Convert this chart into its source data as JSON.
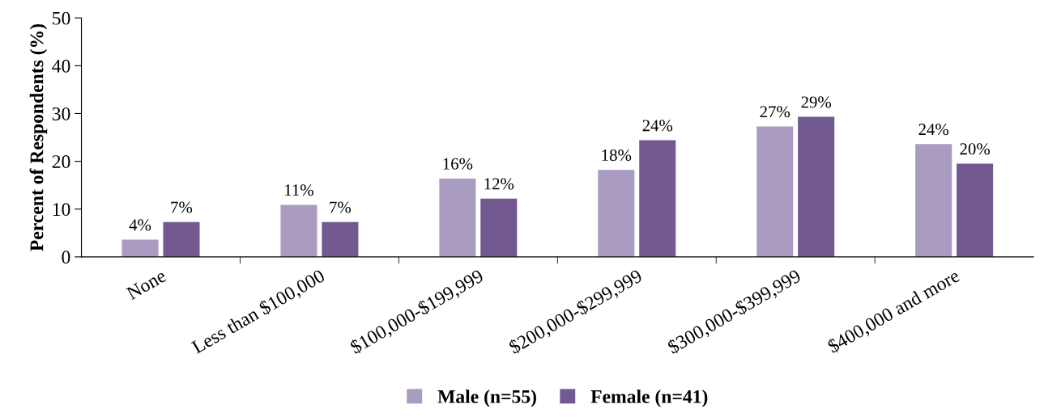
{
  "chart_data": {
    "type": "bar",
    "ylabel": "Percent of Respondents (%)",
    "categories": [
      "None",
      "Less than $100,000",
      "$100,000-$199,999",
      "$200,000-$299,999",
      "$300,000-$399,999",
      "$400,000 and more"
    ],
    "series": [
      {
        "name": "Male (n=55)",
        "color": "#a99cc0",
        "values": [
          3.6,
          10.9,
          16.4,
          18.2,
          27.3,
          23.6
        ],
        "value_labels": [
          "4%",
          "11%",
          "16%",
          "18%",
          "27%",
          "24%"
        ]
      },
      {
        "name": "Female (n=41)",
        "color": "#725a91",
        "values": [
          7.3,
          7.3,
          12.2,
          24.4,
          29.3,
          19.5
        ],
        "value_labels": [
          "7%",
          "7%",
          "12%",
          "24%",
          "29%",
          "20%"
        ]
      }
    ],
    "ylim": [
      0,
      50
    ],
    "yticks": [
      0,
      10,
      20,
      30,
      40,
      50
    ],
    "grid": false,
    "legend": "bottom"
  }
}
